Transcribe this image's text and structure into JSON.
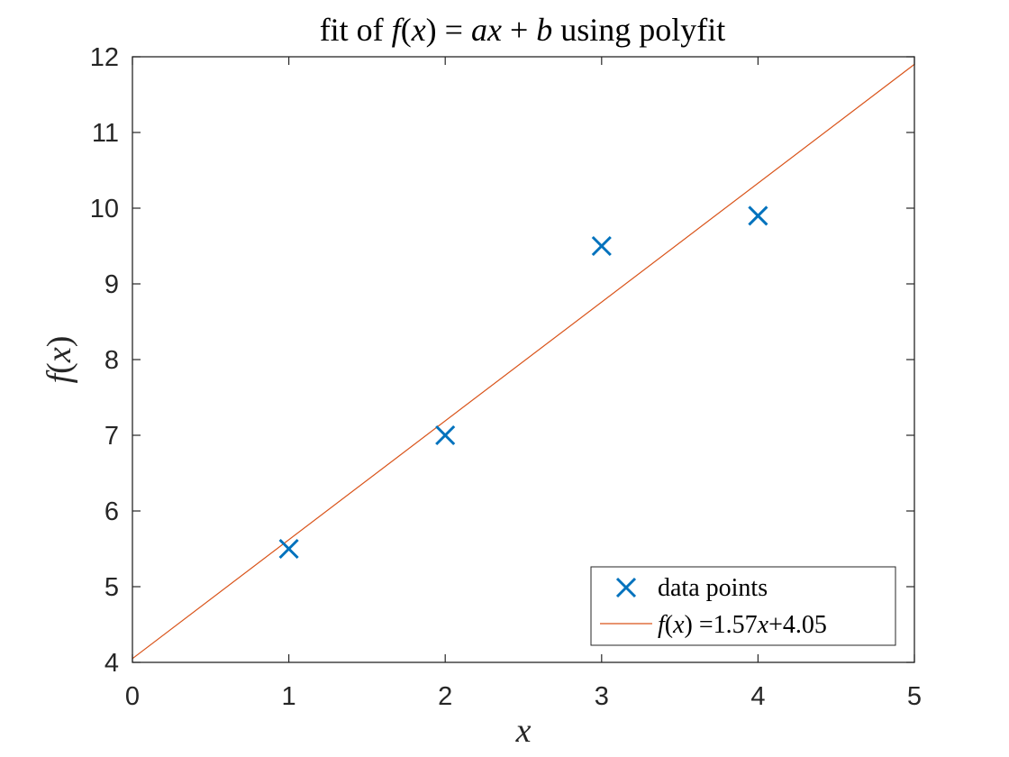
{
  "chart_data": {
    "type": "scatter",
    "title": {
      "pre": "fit of ",
      "f": "f",
      "lp": "(",
      "x": "x",
      "rp": ")",
      "eq": " = ",
      "ax": "ax",
      "plus": " + ",
      "b": "b",
      "post": " using polyfit"
    },
    "xlabel": "x",
    "ylabel": "f(x)",
    "xlim": [
      0,
      5
    ],
    "ylim": [
      4,
      12
    ],
    "xticks": [
      0,
      1,
      2,
      3,
      4,
      5
    ],
    "yticks": [
      4,
      5,
      6,
      7,
      8,
      9,
      10,
      11,
      12
    ],
    "grid": false,
    "legend_position": "bottom-right",
    "colors": {
      "data": "#0072BD",
      "fit": "#D95319",
      "axis": "#262626"
    },
    "series": [
      {
        "name": "data points",
        "marker": "x",
        "x": [
          1,
          2,
          3,
          4
        ],
        "y": [
          5.5,
          7.0,
          9.5,
          9.9
        ]
      },
      {
        "name": "f(x) =1.57x+4.05",
        "mode": "line",
        "slope": 1.57,
        "intercept": 4.05,
        "x": [
          0,
          5
        ],
        "y": [
          4.05,
          11.9
        ]
      }
    ],
    "legend": {
      "entry1": "data points",
      "entry2": {
        "f": "f",
        "lp": "(",
        "x": "x",
        "rp": ")",
        "eq": " =1.57",
        "x2": "x",
        "rest": "+4.05"
      }
    }
  }
}
